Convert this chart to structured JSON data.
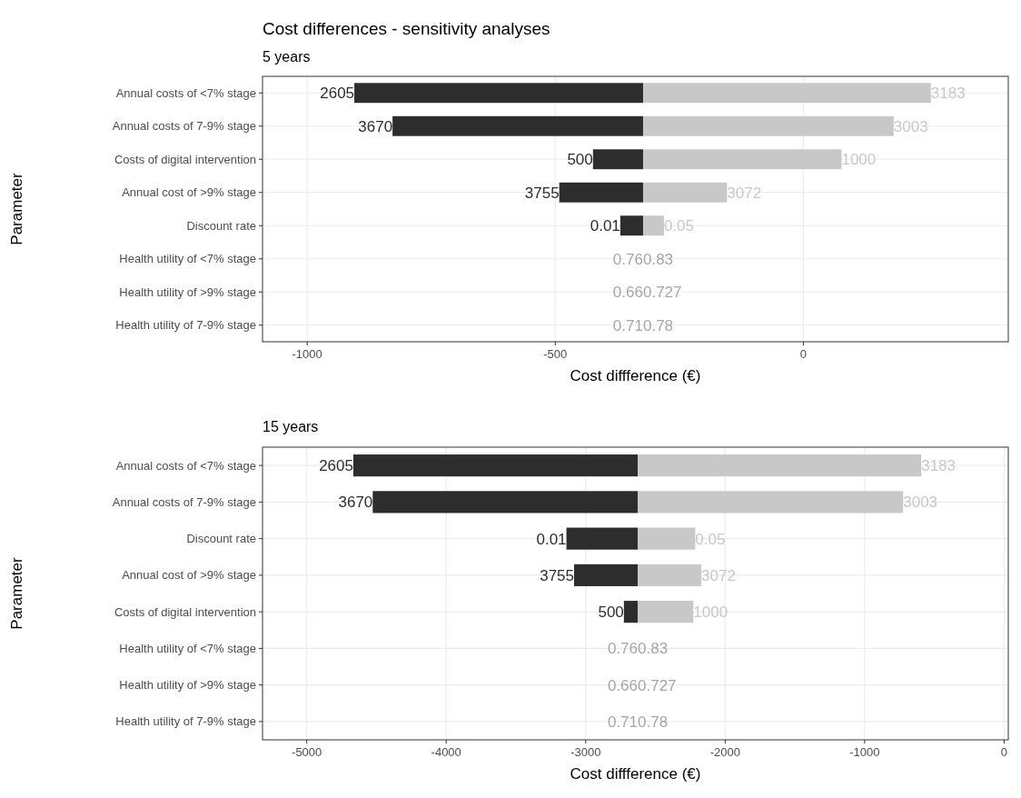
{
  "chart_data": [
    {
      "type": "bar",
      "orientation": "horizontal",
      "title": "Cost differences - sensitivity analyses",
      "subtitle": "5 years",
      "xlabel": "Cost diffference (€)",
      "ylabel": "Parameter",
      "grid": true,
      "categories": [
        "Annual costs of <7% stage",
        "Annual costs of 7-9% stage",
        "Costs of digital intervention",
        "Annual cost of >9% stage",
        "Discount rate",
        "Health utility of <7% stage",
        "Health utility of >9% stage",
        "Health utility of 7-9% stage"
      ],
      "xlim": [
        -1090,
        413
      ],
      "xticks": [
        -1000,
        -500,
        0
      ],
      "series": [
        {
          "color": "#2d2d2d",
          "base": [
            -323,
            -323,
            -323,
            -323,
            -323,
            null,
            null,
            null
          ],
          "values": [
            -582,
            -505,
            -101,
            -169,
            -46,
            null,
            null,
            null
          ]
        },
        {
          "color": "#c8c8c8",
          "base": [
            -323,
            -323,
            -323,
            -323,
            -323,
            null,
            null,
            null
          ],
          "values": [
            580,
            505,
            400,
            169,
            42,
            null,
            null,
            null
          ]
        }
      ],
      "annotations": [
        {
          "text": "2605",
          "x": -905,
          "y": "Annual costs of <7% stage"
        },
        {
          "text": "3183",
          "x": 257,
          "y": "Annual costs of <7% stage"
        },
        {
          "text": "3670",
          "x": -828,
          "y": "Annual costs of 7-9% stage"
        },
        {
          "text": "3003",
          "x": 182,
          "y": "Annual costs of 7-9% stage"
        },
        {
          "text": "500",
          "x": -424,
          "y": "Costs of digital intervention"
        },
        {
          "text": "1000",
          "x": 77,
          "y": "Costs of digital intervention"
        },
        {
          "text": "3755",
          "x": -492,
          "y": "Annual cost of >9% stage"
        },
        {
          "text": "3072",
          "x": -154,
          "y": "Annual cost of >9% stage"
        },
        {
          "text": "0.01",
          "x": -369,
          "y": "Discount rate"
        },
        {
          "text": "0.05",
          "x": -281,
          "y": "Discount rate"
        },
        "0.76",
        "0.83",
        "0.66",
        "0.727",
        "0.71",
        "0.78"
      ]
    },
    {
      "type": "bar",
      "orientation": "horizontal",
      "subtitle": "15 years",
      "xlabel": "Cost diffference (€)",
      "ylabel": "Parameter",
      "grid": true,
      "categories": [
        "Annual costs of <7% stage",
        "Annual costs of 7-9% stage",
        "Discount rate",
        "Annual cost of >9% stage",
        "Costs of digital intervention",
        "Health utility of <7% stage",
        "Health utility of >9% stage",
        "Health utility of 7-9% stage"
      ],
      "xlim": [
        -5317,
        30
      ],
      "xticks": [
        -5000,
        -4000,
        -3000,
        -2000,
        -1000,
        0
      ],
      "series": [
        {
          "color": "#2d2d2d",
          "base": [
            -2627,
            -2627,
            -2627,
            -2627,
            -2627,
            null,
            null,
            null
          ],
          "values": [
            -2039,
            -1900,
            -511,
            -456,
            -99,
            null,
            null,
            null
          ]
        },
        {
          "color": "#c8c8c8",
          "base": [
            -2627,
            -2627,
            -2627,
            -2627,
            -2627,
            null,
            null,
            null
          ],
          "values": [
            2033,
            1903,
            412,
            456,
            399,
            null,
            null,
            null
          ]
        }
      ],
      "annotations": [
        {
          "text": "2605",
          "x": -4666,
          "y": "Annual costs of <7% stage"
        },
        {
          "text": "3183",
          "x": -594,
          "y": "Annual costs of <7% stage"
        },
        {
          "text": "3670",
          "x": -4527,
          "y": "Annual costs of 7-9% stage"
        },
        {
          "text": "3003",
          "x": -724,
          "y": "Annual costs of 7-9% stage"
        },
        {
          "text": "0.01",
          "x": -3138,
          "y": "Discount rate"
        },
        {
          "text": "0.05",
          "x": -2215,
          "y": "Discount rate"
        },
        {
          "text": "3755",
          "x": -3083,
          "y": "Annual cost of >9% stage"
        },
        {
          "text": "3072",
          "x": -2171,
          "y": "Annual cost of >9% stage"
        },
        {
          "text": "500",
          "x": -2726,
          "y": "Costs of digital intervention"
        },
        {
          "text": "1000",
          "x": -2228,
          "y": "Costs of digital intervention"
        },
        "0.76",
        "0.83",
        "0.66",
        "0.727",
        "0.71",
        "0.78"
      ]
    }
  ]
}
